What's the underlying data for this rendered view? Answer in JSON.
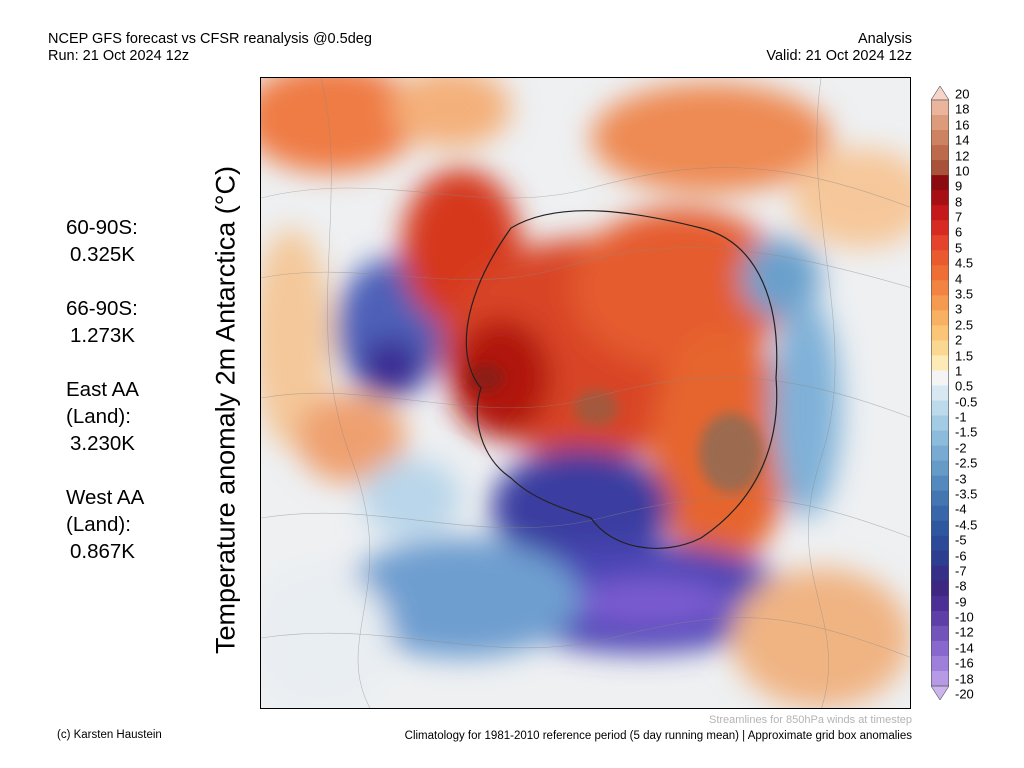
{
  "header": {
    "title": "NCEP GFS forecast vs CFSR reanalysis @0.5deg",
    "run": "Run: 21 Oct 2024 12z",
    "type": "Analysis",
    "valid": "Valid: 21 Oct 2024 12z"
  },
  "ylabel": "Temperature anomaly 2m Antarctica (°C)",
  "stats": [
    {
      "label": "60-90S:",
      "value": "0.325K"
    },
    {
      "label": "66-90S:",
      "value": "1.273K"
    },
    {
      "label": "East AA (Land):",
      "value": "3.230K"
    },
    {
      "label": "West AA (Land):",
      "value": "0.867K"
    }
  ],
  "colorbar": {
    "ticks": [
      "20",
      "18",
      "16",
      "14",
      "12",
      "10",
      "9",
      "8",
      "7",
      "6",
      "5",
      "4.5",
      "4",
      "3.5",
      "3",
      "2.5",
      "2",
      "1.5",
      "1",
      "0.5",
      "-0.5",
      "-1",
      "-1.5",
      "-2",
      "-2.5",
      "-3",
      "-3.5",
      "-4",
      "-4.5",
      "-5",
      "-6",
      "-7",
      "-8",
      "-9",
      "-10",
      "-12",
      "-14",
      "-16",
      "-18",
      "-20"
    ],
    "colors": [
      "#f8d4c8",
      "#ebb49c",
      "#dc9c7c",
      "#cd8262",
      "#bd6a4c",
      "#a8523a",
      "#8c0b10",
      "#a80f14",
      "#c4181a",
      "#d62a22",
      "#e5432b",
      "#ea5a2f",
      "#ee6f36",
      "#f28443",
      "#f59a51",
      "#f8b062",
      "#fac577",
      "#fbd891",
      "#fcebb6",
      "#f4f4f4",
      "#d7e8f2",
      "#bcdaec",
      "#a4cbe4",
      "#8dbbdb",
      "#79abd2",
      "#669bc8",
      "#5489bd",
      "#4477b2",
      "#3866a8",
      "#2f57a0",
      "#2c4a98",
      "#2d3e90",
      "#352f88",
      "#3d2780",
      "#4b2f95",
      "#5e3fa8",
      "#7254bb",
      "#8868cc",
      "#9e80da",
      "#b79ae6",
      "#ccb4ef"
    ]
  },
  "footer": {
    "credit": "(c) Karsten Haustein",
    "climatology": "Climatology for 1981-2010 reference period (5 day running mean) | Approximate grid box anomalies",
    "streamlines": "Streamlines for 850hPa winds at timestep"
  }
}
